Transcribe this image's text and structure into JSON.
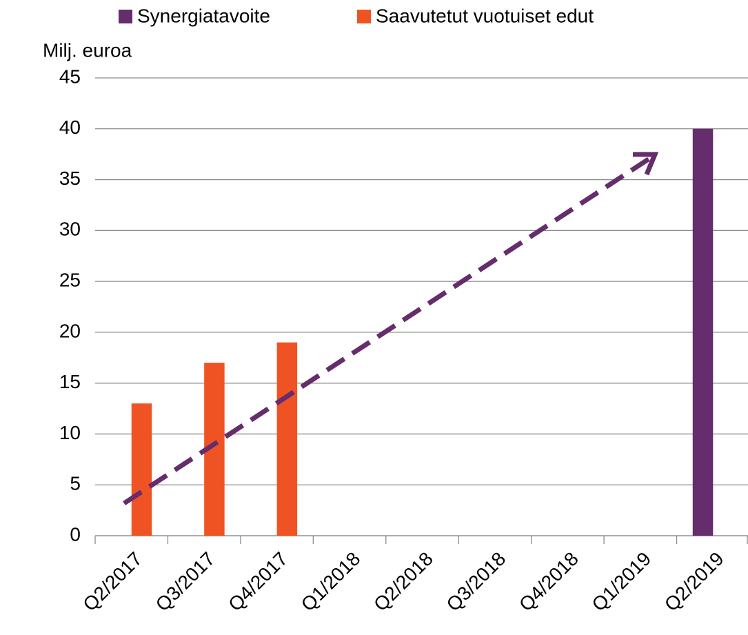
{
  "chart_data": {
    "type": "bar",
    "y_label": "Milj. euroa",
    "categories": [
      "Q2/2017",
      "Q3/2017",
      "Q4/2017",
      "Q1/2018",
      "Q2/2018",
      "Q3/2018",
      "Q4/2018",
      "Q1/2019",
      "Q2/2019"
    ],
    "series": [
      {
        "name": "Synergiatavoite",
        "color": "#652d6c",
        "values": [
          null,
          null,
          null,
          null,
          null,
          null,
          null,
          null,
          40
        ]
      },
      {
        "name": "Saavutetut vuotuiset edut",
        "color": "#f05323",
        "values": [
          13,
          17,
          19,
          null,
          null,
          null,
          null,
          null,
          null
        ]
      }
    ],
    "ylim": [
      0,
      45
    ],
    "yticks": [
      0,
      5,
      10,
      15,
      20,
      25,
      30,
      35,
      40,
      45
    ],
    "grid": true,
    "legend": "top"
  }
}
